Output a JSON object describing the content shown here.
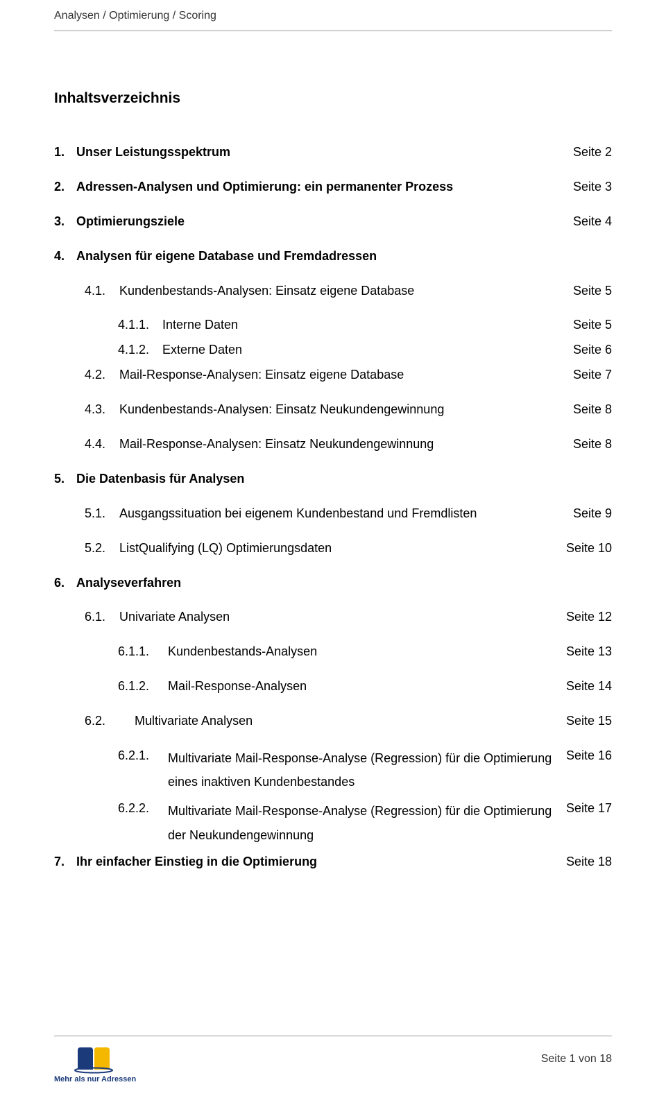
{
  "header": {
    "text": "Analysen / Optimierung / Scoring"
  },
  "title": "Inhaltsverzeichnis",
  "entries": [
    {
      "level": "lvl0",
      "bold": true,
      "num": "1.",
      "label": "Unser Leistungsspektrum",
      "page": "Seite 2"
    },
    {
      "level": "lvl0",
      "bold": true,
      "num": "2.",
      "label": "Adressen-Analysen und Optimierung: ein permanenter Prozess",
      "page": "Seite 3"
    },
    {
      "level": "lvl0",
      "bold": true,
      "num": "3.",
      "label": "Optimierungsziele",
      "page": "Seite 4"
    },
    {
      "level": "lvl0",
      "bold": true,
      "num": "4.",
      "label": "Analysen für eigene Database und Fremdadressen",
      "page": ""
    },
    {
      "level": "lvl1",
      "bold": false,
      "num": "4.1.",
      "label": "Kundenbestands-Analysen: Einsatz eigene Database",
      "page": "Seite 5"
    },
    {
      "level": "lvl2",
      "bold": false,
      "num": "4.1.1.",
      "label": "Interne Daten",
      "page": "Seite 5",
      "tight": true
    },
    {
      "level": "lvl2",
      "bold": false,
      "num": "4.1.2.",
      "label": "Externe Daten",
      "page": "Seite 6",
      "tight": true
    },
    {
      "level": "lvl1",
      "bold": false,
      "num": "4.2.",
      "label": "Mail-Response-Analysen: Einsatz eigene Database",
      "page": "Seite 7"
    },
    {
      "level": "lvl1",
      "bold": false,
      "num": "4.3.",
      "label": "Kundenbestands-Analysen: Einsatz Neukundengewinnung",
      "page": "Seite 8"
    },
    {
      "level": "lvl1",
      "bold": false,
      "num": "4.4.",
      "label": "Mail-Response-Analysen: Einsatz Neukundengewinnung",
      "page": "Seite 8"
    },
    {
      "level": "lvl0",
      "bold": true,
      "num": "5.",
      "label": "Die Datenbasis für Analysen",
      "page": ""
    },
    {
      "level": "lvl1",
      "bold": false,
      "num": "5.1.",
      "label": "Ausgangssituation bei eigenem Kundenbestand und Fremdlisten",
      "page": "Seite 9"
    },
    {
      "level": "lvl1",
      "bold": false,
      "num": "5.2.",
      "label": "ListQualifying (LQ) Optimierungsdaten",
      "page": "Seite 10"
    },
    {
      "level": "lvl0",
      "bold": true,
      "num": "6.",
      "label": "Analyseverfahren",
      "page": ""
    },
    {
      "level": "lvl1",
      "bold": false,
      "num": "6.1.",
      "label": "Univariate Analysen",
      "page": "Seite 12"
    },
    {
      "level": "lvl2b",
      "bold": false,
      "num": "6.1.1.",
      "label": "Kundenbestands-Analysen",
      "page": "Seite 13"
    },
    {
      "level": "lvl2b",
      "bold": false,
      "num": "6.1.2.",
      "label": "Mail-Response-Analysen",
      "page": "Seite 14"
    },
    {
      "level": "lvl1b",
      "bold": false,
      "num": "6.2.",
      "label": "Multivariate Analysen",
      "page": "Seite 15"
    },
    {
      "level": "lvl2b",
      "bold": false,
      "num": "6.2.1.",
      "label": "Multivariate Mail-Response-Analyse (Regression) für die Optimierung eines inaktiven Kundenbestandes",
      "page": "Seite 16",
      "multiline": true,
      "tight": true
    },
    {
      "level": "lvl2b",
      "bold": false,
      "num": "6.2.2.",
      "label": "Multivariate Mail-Response-Analyse (Regression) für die Optimierung der Neukundengewinnung",
      "page": "Seite 17",
      "multiline": true,
      "tight": true
    },
    {
      "level": "lvl0",
      "bold": true,
      "num": "7.",
      "label": "Ihr einfacher Einstieg in die Optimierung",
      "page": "Seite 18"
    }
  ],
  "footer": {
    "page_text": "Seite 1 von 18",
    "logo_caption": "Mehr als nur Adressen",
    "logo_colors": {
      "blue": "#1a3a7a",
      "yellow": "#f5b800"
    }
  }
}
